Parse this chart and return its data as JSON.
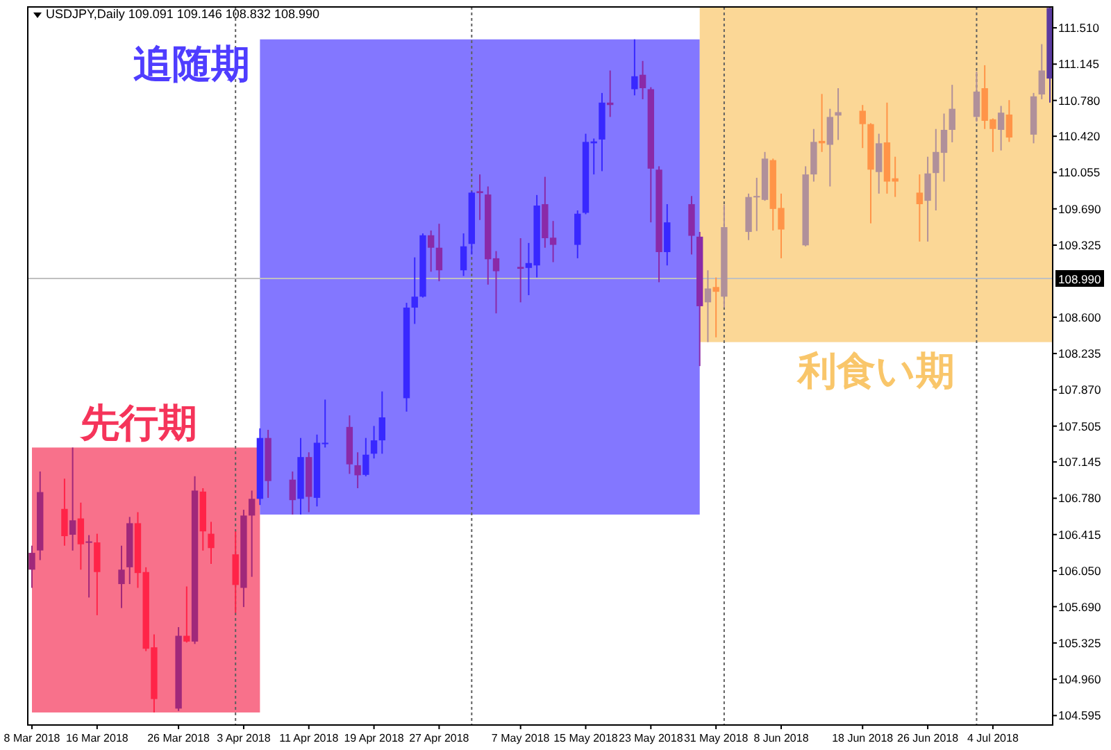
{
  "chart_data": {
    "type": "candlestick",
    "title": "USDJPY,Daily  109.091 109.146 108.832 108.990",
    "x": [
      "2018-03-08",
      "2018-03-09",
      "2018-03-12",
      "2018-03-13",
      "2018-03-14",
      "2018-03-15",
      "2018-03-16",
      "2018-03-19",
      "2018-03-20",
      "2018-03-21",
      "2018-03-22",
      "2018-03-23",
      "2018-03-26",
      "2018-03-27",
      "2018-03-28",
      "2018-03-29",
      "2018-03-30",
      "2018-04-02",
      "2018-04-03",
      "2018-04-04",
      "2018-04-05",
      "2018-04-06",
      "2018-04-09",
      "2018-04-10",
      "2018-04-11",
      "2018-04-12",
      "2018-04-13",
      "2018-04-16",
      "2018-04-17",
      "2018-04-18",
      "2018-04-19",
      "2018-04-20",
      "2018-04-23",
      "2018-04-24",
      "2018-04-25",
      "2018-04-26",
      "2018-04-27",
      "2018-04-30",
      "2018-05-01",
      "2018-05-02",
      "2018-05-03",
      "2018-05-04",
      "2018-05-07",
      "2018-05-08",
      "2018-05-09",
      "2018-05-10",
      "2018-05-11",
      "2018-05-14",
      "2018-05-15",
      "2018-05-16",
      "2018-05-17",
      "2018-05-18",
      "2018-05-21",
      "2018-05-22",
      "2018-05-23",
      "2018-05-24",
      "2018-05-25",
      "2018-05-28",
      "2018-05-29",
      "2018-05-30",
      "2018-05-31",
      "2018-06-01",
      "2018-06-04",
      "2018-06-05",
      "2018-06-06",
      "2018-06-07",
      "2018-06-08",
      "2018-06-11",
      "2018-06-12",
      "2018-06-13",
      "2018-06-14",
      "2018-06-15",
      "2018-06-18",
      "2018-06-19",
      "2018-06-20",
      "2018-06-21",
      "2018-06-22",
      "2018-06-25",
      "2018-06-26",
      "2018-06-27",
      "2018-06-28",
      "2018-06-29",
      "2018-07-02",
      "2018-07-03",
      "2018-07-04",
      "2018-07-05",
      "2018-07-06",
      "2018-07-09",
      "2018-07-10",
      "2018-07-11"
    ],
    "ohlc": [
      [
        106.062,
        106.303,
        105.879,
        106.231
      ],
      [
        106.255,
        107.049,
        106.158,
        106.842
      ],
      [
        106.673,
        106.977,
        106.303,
        106.399
      ],
      [
        106.413,
        107.29,
        106.254,
        106.558
      ],
      [
        106.577,
        106.736,
        106.062,
        106.317
      ],
      [
        106.336,
        106.409,
        105.782,
        106.346
      ],
      [
        106.336,
        106.423,
        105.604,
        106.038
      ],
      [
        105.917,
        106.303,
        105.676,
        106.062
      ],
      [
        106.086,
        106.592,
        105.917,
        106.529
      ],
      [
        106.529,
        106.64,
        105.879,
        106.028
      ],
      [
        106.038,
        106.086,
        105.243,
        105.267
      ],
      [
        105.281,
        105.411,
        104.626,
        104.761
      ],
      [
        104.665,
        105.484,
        104.641,
        105.397
      ],
      [
        105.397,
        105.893,
        105.329,
        105.339
      ],
      [
        105.339,
        107.001,
        105.315,
        106.857
      ],
      [
        106.847,
        106.881,
        106.254,
        106.447
      ],
      [
        106.423,
        106.543,
        106.12,
        106.279
      ],
      [
        106.216,
        106.447,
        105.628,
        105.908
      ],
      [
        105.879,
        106.664,
        105.686,
        106.606
      ],
      [
        106.606,
        106.857,
        105.99,
        106.774
      ],
      [
        106.774,
        107.483,
        106.712,
        107.386
      ],
      [
        107.386,
        107.468,
        106.784,
        106.953
      ],
      [
        106.967,
        107.049,
        106.616,
        106.761
      ],
      [
        106.774,
        107.386,
        106.616,
        107.194
      ],
      [
        107.194,
        107.242,
        106.64,
        106.794
      ],
      [
        106.784,
        107.42,
        106.698,
        107.338
      ],
      [
        107.324,
        107.772,
        107.29,
        107.338
      ],
      [
        107.497,
        107.613,
        107.025,
        107.121
      ],
      [
        107.112,
        107.242,
        106.881,
        107.011
      ],
      [
        107.015,
        107.386,
        107.001,
        107.218
      ],
      [
        107.228,
        107.507,
        107.18,
        107.362
      ],
      [
        107.362,
        107.854,
        107.228,
        107.593
      ],
      [
        107.786,
        108.745,
        107.651,
        108.697
      ],
      [
        108.697,
        109.202,
        108.533,
        108.807
      ],
      [
        108.807,
        109.443,
        108.798,
        109.424
      ],
      [
        109.424,
        109.472,
        109.058,
        109.299
      ],
      [
        109.299,
        109.54,
        108.962,
        109.072
      ],
      [
        109.072,
        109.443,
        109.015,
        109.313
      ],
      [
        109.337,
        109.867,
        109.231,
        109.853
      ],
      [
        109.867,
        110.036,
        109.578,
        109.848
      ],
      [
        109.834,
        109.915,
        108.928,
        109.183
      ],
      [
        109.193,
        109.265,
        108.639,
        109.063
      ],
      [
        109.106,
        109.395,
        108.75,
        109.087
      ],
      [
        109.096,
        109.347,
        108.822,
        109.145
      ],
      [
        109.121,
        109.829,
        109.0,
        109.723
      ],
      [
        109.737,
        110.012,
        109.299,
        109.395
      ],
      [
        109.4,
        109.568,
        109.154,
        109.328
      ],
      [
        109.328,
        109.674,
        109.193,
        109.641
      ],
      [
        109.65,
        110.445,
        109.636,
        110.363
      ],
      [
        110.349,
        110.397,
        110.036,
        110.368
      ],
      [
        110.387,
        110.855,
        110.069,
        110.758
      ],
      [
        110.758,
        111.081,
        110.614,
        110.734
      ],
      [
        110.893,
        111.394,
        110.831,
        111.023
      ],
      [
        111.038,
        111.177,
        110.792,
        110.903
      ],
      [
        110.893,
        110.913,
        109.554,
        110.094
      ],
      [
        110.084,
        110.118,
        108.952,
        109.255
      ],
      [
        109.255,
        109.737,
        109.121,
        109.554
      ],
      [
        109.737,
        109.819,
        109.231,
        109.419
      ],
      [
        109.41,
        109.458,
        108.109,
        108.711
      ],
      [
        108.75,
        109.072,
        108.35,
        108.889
      ],
      [
        108.904,
        109.0,
        108.398,
        108.856
      ],
      [
        108.807,
        109.732,
        108.697,
        109.506
      ],
      [
        109.458,
        109.843,
        109.376,
        109.809
      ],
      [
        109.805,
        110.002,
        109.467,
        109.819
      ],
      [
        109.78,
        110.262,
        109.771,
        110.195
      ],
      [
        110.18,
        110.195,
        109.472,
        109.689
      ],
      [
        109.699,
        109.843,
        109.193,
        109.482
      ],
      [
        109.323,
        110.118,
        109.313,
        110.036
      ],
      [
        110.036,
        110.493,
        109.964,
        110.363
      ],
      [
        110.373,
        110.845,
        110.262,
        110.349
      ],
      [
        110.334,
        110.696,
        109.915,
        110.614
      ],
      [
        110.628,
        110.903,
        110.383,
        110.662
      ],
      [
        110.676,
        110.734,
        110.301,
        110.542
      ],
      [
        110.542,
        110.551,
        109.544,
        110.084
      ],
      [
        110.06,
        110.445,
        109.843,
        110.349
      ],
      [
        110.358,
        110.758,
        109.843,
        109.964
      ],
      [
        109.997,
        110.214,
        109.81,
        109.964
      ],
      [
        109.853,
        110.036,
        109.361,
        109.737
      ],
      [
        109.771,
        110.214,
        109.361,
        110.046
      ],
      [
        110.05,
        110.493,
        109.674,
        110.262
      ],
      [
        110.253,
        110.648,
        109.964,
        110.484
      ],
      [
        110.484,
        110.937,
        110.359,
        110.696
      ],
      [
        110.614,
        111.071,
        110.566,
        110.869
      ],
      [
        110.903,
        111.134,
        110.493,
        110.575
      ],
      [
        110.59,
        110.599,
        110.262,
        110.493
      ],
      [
        110.484,
        110.725,
        110.277,
        110.657
      ],
      [
        110.638,
        110.783,
        110.363,
        110.407
      ],
      [
        110.436,
        110.855,
        110.349,
        110.821
      ],
      [
        110.84,
        111.346,
        110.792,
        111.081
      ],
      [
        111.0,
        111.72,
        110.759,
        111.71
      ]
    ],
    "colors": [
      "#a0287a",
      "#a0287a",
      "#ff2448",
      "#a0287a",
      "#ff2448",
      "#a0287a",
      "#ff2448",
      "#a0287a",
      "#a0287a",
      "#ff2448",
      "#ff2448",
      "#ff2448",
      "#a0287a",
      "#ff2448",
      "#a0287a",
      "#ff2448",
      "#ff2448",
      "#ff2448",
      "#a0287a",
      "#a0287a",
      "#3828ff",
      "#8a2aa8",
      "#8a2aa8",
      "#3828ff",
      "#8a2aa8",
      "#3828ff",
      "#3828ff",
      "#8a2aa8",
      "#8a2aa8",
      "#3828ff",
      "#3828ff",
      "#3828ff",
      "#3828ff",
      "#3828ff",
      "#3828ff",
      "#8a2aa8",
      "#8a2aa8",
      "#3828ff",
      "#3828ff",
      "#8a2aa8",
      "#8a2aa8",
      "#8a2aa8",
      "#8a2aa8",
      "#3828ff",
      "#3828ff",
      "#8a2aa8",
      "#8a2aa8",
      "#3828ff",
      "#3828ff",
      "#3828ff",
      "#3828ff",
      "#8a2aa8",
      "#3828ff",
      "#8a2aa8",
      "#8a2aa8",
      "#8a2aa8",
      "#3828ff",
      "#8a2aa8",
      "#8a2aa8",
      "#b0909a",
      "#ff9448",
      "#b0909a",
      "#b0909a",
      "#b0909a",
      "#b0909a",
      "#ff9448",
      "#ff9448",
      "#b0909a",
      "#b0909a",
      "#ff9448",
      "#b0909a",
      "#b0909a",
      "#ff9448",
      "#ff9448",
      "#b0909a",
      "#ff9448",
      "#ff9448",
      "#ff9448",
      "#b0909a",
      "#b0909a",
      "#b0909a",
      "#b0909a",
      "#b0909a",
      "#ff9448",
      "#ff9448",
      "#b0909a",
      "#ff9448",
      "#b0909a",
      "#b0909a",
      "#5a3aa0"
    ],
    "xlim": [
      "2018-03-08",
      "2018-07-11"
    ],
    "xticks": [
      {
        "value": "2018-03-08",
        "label": "8 Mar 2018"
      },
      {
        "value": "2018-03-16",
        "label": "16 Mar 2018"
      },
      {
        "value": "2018-03-26",
        "label": "26 Mar 2018"
      },
      {
        "value": "2018-04-03",
        "label": "3 Apr 2018"
      },
      {
        "value": "2018-04-11",
        "label": "11 Apr 2018"
      },
      {
        "value": "2018-04-19",
        "label": "19 Apr 2018"
      },
      {
        "value": "2018-04-27",
        "label": "27 Apr 2018"
      },
      {
        "value": "2018-05-07",
        "label": "7 May 2018"
      },
      {
        "value": "2018-05-15",
        "label": "15 May 2018"
      },
      {
        "value": "2018-05-23",
        "label": "23 May 2018"
      },
      {
        "value": "2018-05-31",
        "label": "31 May 2018"
      },
      {
        "value": "2018-06-08",
        "label": "8 Jun 2018"
      },
      {
        "value": "2018-06-18",
        "label": "18 Jun 2018"
      },
      {
        "value": "2018-06-26",
        "label": "26 Jun 2018"
      },
      {
        "value": "2018-07-04",
        "label": "4 Jul 2018"
      }
    ],
    "ylim": [
      104.5,
      111.72
    ],
    "yticks": [
      {
        "value": 111.51,
        "label": "111.510"
      },
      {
        "value": 111.145,
        "label": "111.145"
      },
      {
        "value": 110.78,
        "label": "110.780"
      },
      {
        "value": 110.42,
        "label": "110.420"
      },
      {
        "value": 110.055,
        "label": "110.055"
      },
      {
        "value": 109.69,
        "label": "109.690"
      },
      {
        "value": 109.325,
        "label": "109.325"
      },
      {
        "value": 108.6,
        "label": "108.600"
      },
      {
        "value": 108.235,
        "label": "108.235"
      },
      {
        "value": 107.87,
        "label": "107.870"
      },
      {
        "value": 107.505,
        "label": "107.505"
      },
      {
        "value": 107.145,
        "label": "107.145"
      },
      {
        "value": 106.78,
        "label": "106.780"
      },
      {
        "value": 106.415,
        "label": "106.415"
      },
      {
        "value": 106.05,
        "label": "106.050"
      },
      {
        "value": 105.69,
        "label": "105.690"
      },
      {
        "value": 105.325,
        "label": "105.325"
      },
      {
        "value": 104.96,
        "label": "104.960"
      },
      {
        "value": 104.595,
        "label": "104.595"
      }
    ],
    "ref_lines": [
      {
        "axis": "y",
        "value": 108.99,
        "label": "108.990",
        "color": "#c0c0c0",
        "line_style": "solid"
      },
      {
        "axis": "x",
        "value": "2018-04-02",
        "color": "#606060",
        "line_style": "dotted"
      },
      {
        "axis": "x",
        "value": "2018-05-01",
        "color": "#606060",
        "line_style": "dotted"
      },
      {
        "axis": "x",
        "value": "2018-06-01",
        "color": "#606060",
        "line_style": "dotted"
      },
      {
        "axis": "x",
        "value": "2018-07-02",
        "color": "#606060",
        "line_style": "dotted"
      }
    ],
    "bands": [
      {
        "axis": "x",
        "from": "2018-03-08",
        "to": "2018-04-05",
        "label": "先行期",
        "color": "#f5345a"
      },
      {
        "axis": "x",
        "from": "2018-04-05",
        "to": "2018-05-29",
        "label": "追随期",
        "color": "#4f3dff"
      },
      {
        "axis": "x",
        "from": "2018-05-29",
        "to": "2018-07-12",
        "label": "利食い期",
        "color": "#f9c66a"
      }
    ]
  }
}
